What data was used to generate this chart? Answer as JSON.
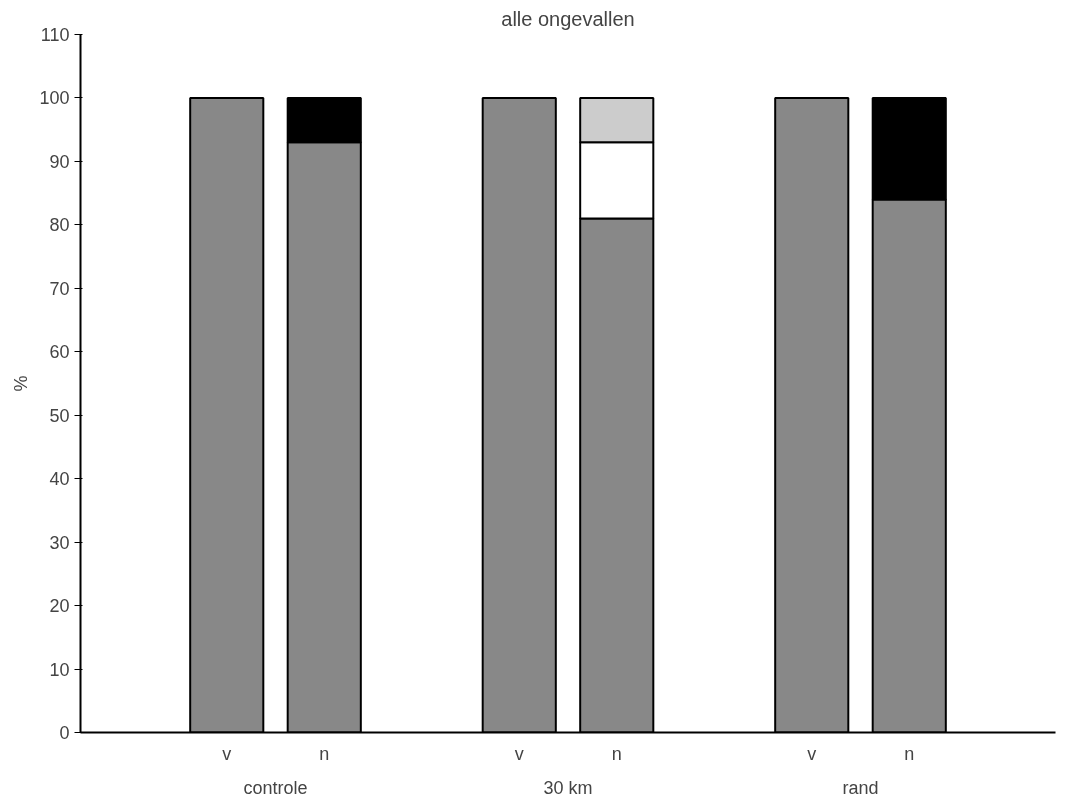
{
  "chart_data": {
    "type": "bar",
    "title": "alle ongevallen",
    "ylabel": "%",
    "stacked": true,
    "categories": [
      "v",
      "n",
      "v",
      "n",
      "v",
      "n"
    ],
    "series": [
      {
        "color": "#888888",
        "values": [
          100,
          93,
          100,
          81,
          100,
          84
        ]
      },
      {
        "color": "#000000",
        "values": [
          null,
          7,
          null,
          null,
          null,
          16
        ]
      },
      {
        "color": "#ffffff",
        "values": [
          null,
          null,
          null,
          12,
          null,
          null
        ]
      },
      {
        "color": "#cccccc",
        "values": [
          null,
          null,
          null,
          7,
          null,
          null
        ]
      }
    ],
    "annotations": [
      "controle",
      "30 km",
      "rand"
    ],
    "ylim": [
      0,
      110
    ],
    "yticks": [
      0,
      10,
      20,
      30,
      40,
      50,
      60,
      70,
      80,
      90,
      100,
      110
    ],
    "grid": false
  }
}
